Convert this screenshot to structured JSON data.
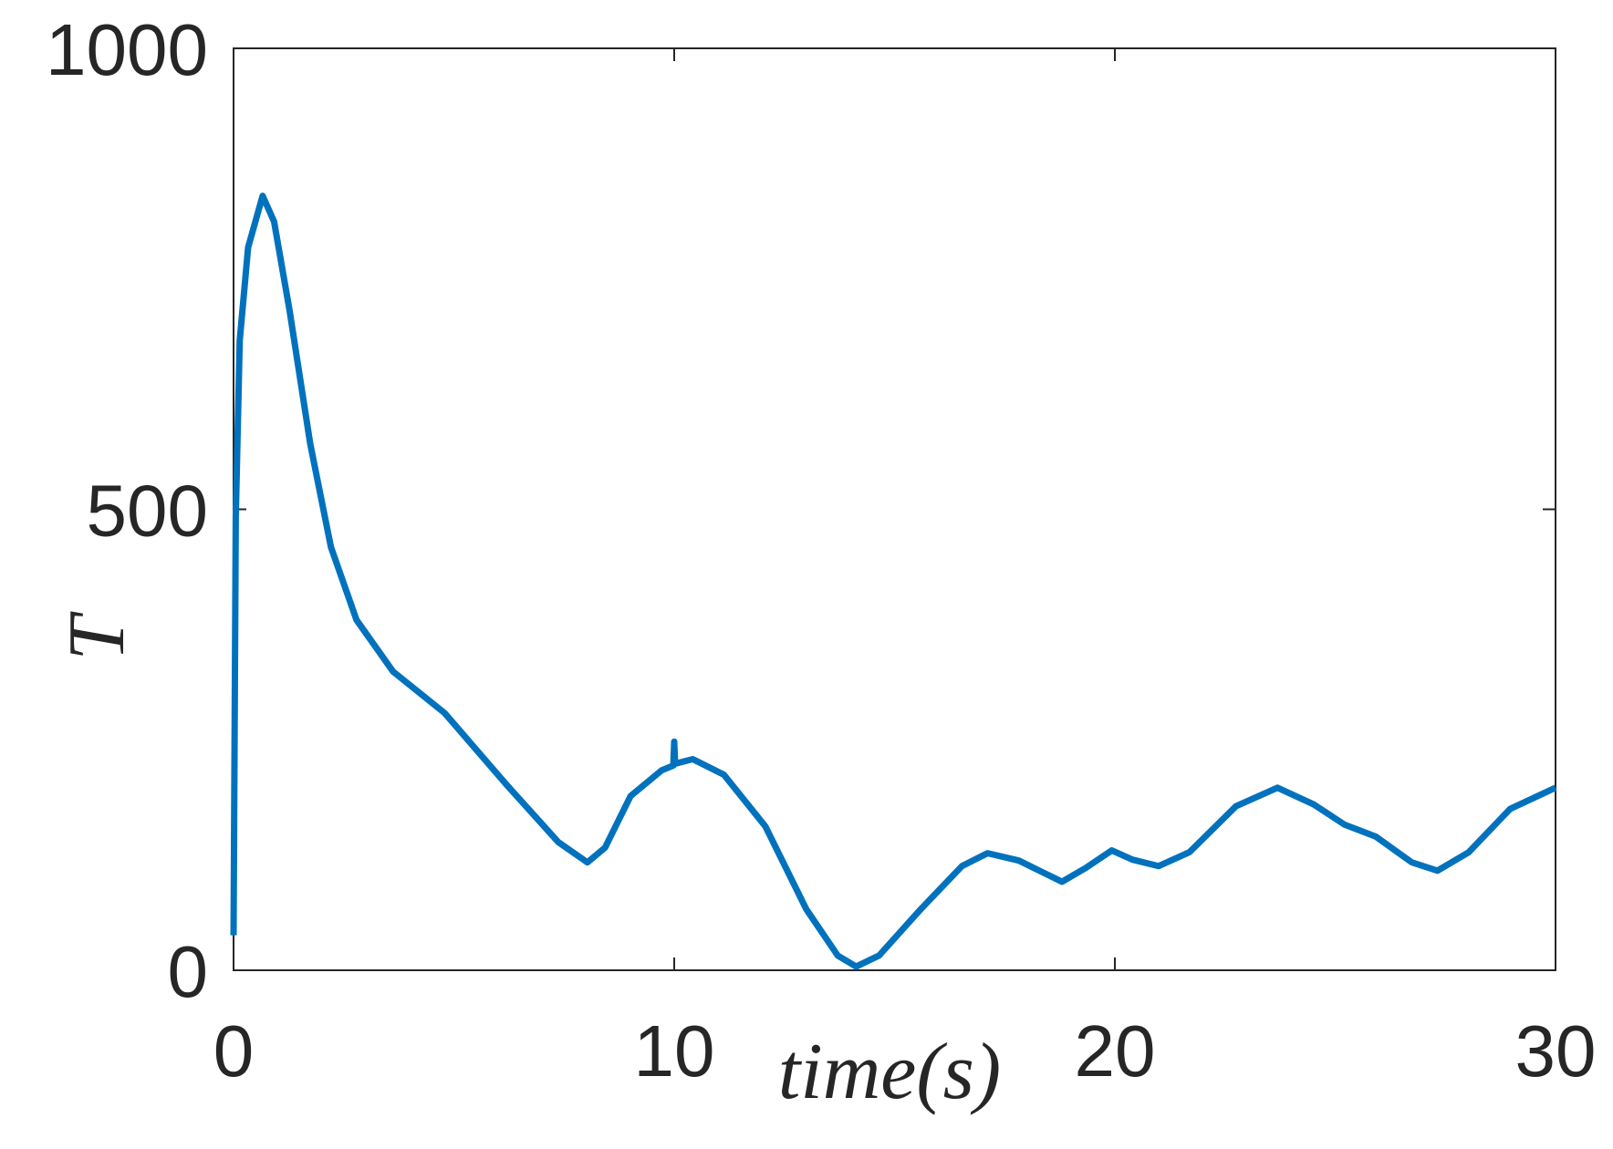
{
  "chart_data": {
    "type": "line",
    "xlabel": "time(s)",
    "ylabel": "T",
    "series": [
      {
        "name": "T",
        "color": "#0072bd",
        "x": [
          0,
          0.05,
          0.14,
          0.33,
          0.66,
          0.92,
          1.27,
          1.74,
          2.21,
          2.79,
          3.62,
          4.79,
          6.2,
          7.37,
          8.03,
          8.43,
          9.01,
          9.72,
          9.98,
          10.0,
          10.02,
          10.42,
          11.13,
          12.07,
          13.0,
          13.71,
          14.13,
          14.65,
          15.59,
          16.53,
          17.11,
          17.82,
          18.8,
          19.34,
          19.93,
          20.4,
          20.99,
          21.69,
          22.75,
          23.69,
          24.51,
          25.21,
          25.92,
          26.74,
          27.32,
          28.03,
          28.97,
          30
        ],
        "values": [
          38,
          492,
          683,
          784,
          840,
          812,
          716,
          571,
          459,
          380,
          324,
          279,
          201,
          139,
          117,
          133,
          189,
          217,
          222,
          248,
          224,
          229,
          212,
          156,
          66,
          16,
          4,
          16,
          66,
          113,
          127,
          119,
          96,
          111,
          130,
          120,
          113,
          128,
          178,
          198,
          180,
          158,
          145,
          117,
          108,
          128,
          175,
          198
        ]
      }
    ],
    "xlim": [
      0,
      30
    ],
    "xticks": [
      0,
      10,
      20,
      30
    ],
    "ylim": [
      0,
      1000
    ],
    "yticks": [
      0,
      500,
      1000
    ],
    "grid": false
  }
}
